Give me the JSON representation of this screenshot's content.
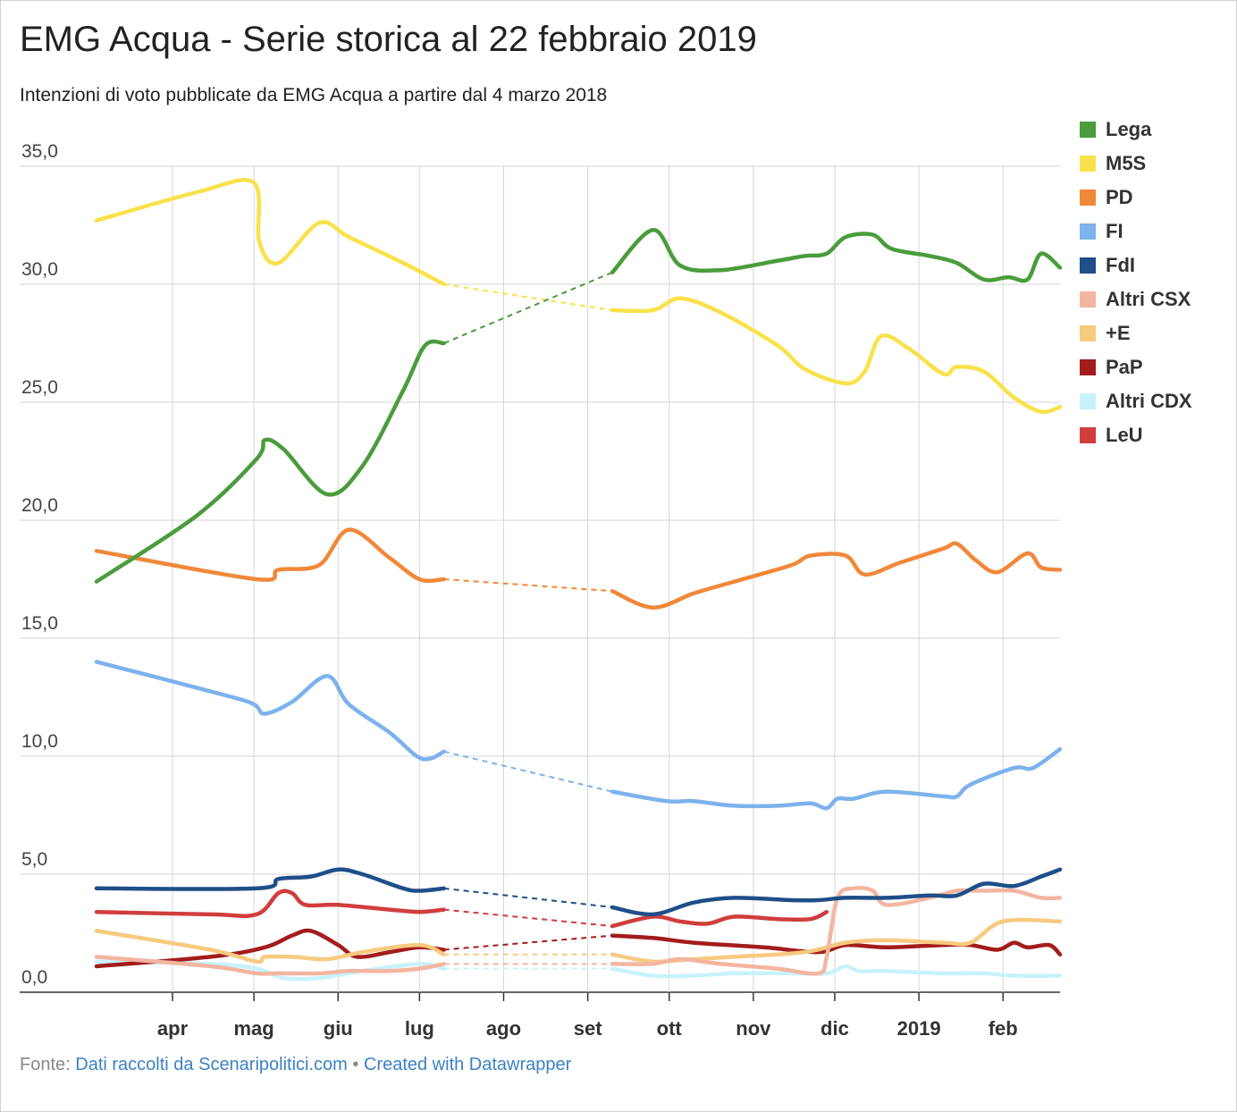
{
  "title": "EMG Acqua - Serie storica al 22 febbraio 2019",
  "subtitle": "Intenzioni di voto pubblicate da EMG Acqua a partire dal 4 marzo 2018",
  "footer": {
    "prefix": "Fonte:",
    "source": "Dati raccolti da Scenaripolitici.com",
    "separator": "•",
    "credit": "Created with Datawrapper"
  },
  "chart_data": {
    "type": "line",
    "ylim": [
      0,
      35
    ],
    "y_ticks": [
      "0,0",
      "5,0",
      "10,0",
      "15,0",
      "20,0",
      "25,0",
      "30,0",
      "35,0"
    ],
    "x_ticks": [
      "apr",
      "mag",
      "giu",
      "lug",
      "ago",
      "set",
      "ott",
      "nov",
      "dic",
      "2019",
      "feb"
    ],
    "x_tick_dates": [
      "2018-04-01",
      "2018-05-01",
      "2018-06-01",
      "2018-07-01",
      "2018-08-01",
      "2018-09-01",
      "2018-10-01",
      "2018-11-01",
      "2018-12-01",
      "2019-01-01",
      "2019-02-01"
    ],
    "x_range": [
      "2018-03-04",
      "2019-02-22"
    ],
    "gap": {
      "from": "2018-07-10",
      "to": "2018-09-10",
      "style": "dashed"
    },
    "grid": true,
    "legend_position": "right",
    "series": [
      {
        "name": "Lega",
        "color": "#4a9c3c",
        "points": [
          [
            "2018-03-04",
            17.4
          ],
          [
            "2018-04-10",
            20.2
          ],
          [
            "2018-05-02",
            22.6
          ],
          [
            "2018-05-05",
            23.4
          ],
          [
            "2018-05-12",
            23.0
          ],
          [
            "2018-05-28",
            21.1
          ],
          [
            "2018-06-10",
            22.3
          ],
          [
            "2018-06-25",
            25.5
          ],
          [
            "2018-07-03",
            27.4
          ],
          [
            "2018-07-10",
            27.5
          ],
          [
            "2018-09-10",
            30.5
          ],
          [
            "2018-09-25",
            32.3
          ],
          [
            "2018-10-05",
            30.8
          ],
          [
            "2018-10-20",
            30.6
          ],
          [
            "2018-11-10",
            31.0
          ],
          [
            "2018-11-20",
            31.2
          ],
          [
            "2018-11-28",
            31.3
          ],
          [
            "2018-12-05",
            32.0
          ],
          [
            "2018-12-15",
            32.1
          ],
          [
            "2018-12-22",
            31.5
          ],
          [
            "2019-01-05",
            31.2
          ],
          [
            "2019-01-15",
            30.9
          ],
          [
            "2019-01-25",
            30.2
          ],
          [
            "2019-02-03",
            30.3
          ],
          [
            "2019-02-10",
            30.2
          ],
          [
            "2019-02-15",
            31.3
          ],
          [
            "2019-02-22",
            30.7
          ]
        ]
      },
      {
        "name": "M5S",
        "color": "#f9e14b",
        "points": [
          [
            "2018-03-04",
            32.7
          ],
          [
            "2018-04-10",
            33.9
          ],
          [
            "2018-05-01",
            34.3
          ],
          [
            "2018-05-03",
            31.8
          ],
          [
            "2018-05-10",
            30.9
          ],
          [
            "2018-05-25",
            32.6
          ],
          [
            "2018-06-05",
            32.0
          ],
          [
            "2018-06-25",
            30.9
          ],
          [
            "2018-07-10",
            30.0
          ],
          [
            "2018-09-10",
            28.9
          ],
          [
            "2018-09-25",
            28.9
          ],
          [
            "2018-10-05",
            29.4
          ],
          [
            "2018-10-20",
            28.8
          ],
          [
            "2018-11-10",
            27.4
          ],
          [
            "2018-11-20",
            26.4
          ],
          [
            "2018-12-05",
            25.8
          ],
          [
            "2018-12-12",
            26.3
          ],
          [
            "2018-12-18",
            27.8
          ],
          [
            "2018-12-28",
            27.3
          ],
          [
            "2019-01-10",
            26.2
          ],
          [
            "2019-01-15",
            26.5
          ],
          [
            "2019-01-25",
            26.3
          ],
          [
            "2019-02-05",
            25.2
          ],
          [
            "2019-02-15",
            24.6
          ],
          [
            "2019-02-22",
            24.8
          ]
        ]
      },
      {
        "name": "PD",
        "color": "#f0883a",
        "points": [
          [
            "2018-03-04",
            18.7
          ],
          [
            "2018-05-02",
            17.5
          ],
          [
            "2018-05-10",
            17.9
          ],
          [
            "2018-05-25",
            18.1
          ],
          [
            "2018-06-05",
            19.6
          ],
          [
            "2018-06-20",
            18.4
          ],
          [
            "2018-07-01",
            17.5
          ],
          [
            "2018-07-10",
            17.5
          ],
          [
            "2018-09-10",
            17.0
          ],
          [
            "2018-09-25",
            16.3
          ],
          [
            "2018-10-10",
            16.9
          ],
          [
            "2018-10-25",
            17.4
          ],
          [
            "2018-11-15",
            18.1
          ],
          [
            "2018-11-22",
            18.5
          ],
          [
            "2018-12-05",
            18.5
          ],
          [
            "2018-12-12",
            17.7
          ],
          [
            "2018-12-25",
            18.2
          ],
          [
            "2019-01-10",
            18.8
          ],
          [
            "2019-01-15",
            19.0
          ],
          [
            "2019-01-22",
            18.3
          ],
          [
            "2019-01-30",
            17.8
          ],
          [
            "2019-02-10",
            18.6
          ],
          [
            "2019-02-15",
            18.0
          ],
          [
            "2019-02-22",
            17.9
          ]
        ]
      },
      {
        "name": "FI",
        "color": "#7db2ec",
        "points": [
          [
            "2018-03-04",
            14.0
          ],
          [
            "2018-04-20",
            12.6
          ],
          [
            "2018-05-01",
            12.2
          ],
          [
            "2018-05-05",
            11.8
          ],
          [
            "2018-05-15",
            12.3
          ],
          [
            "2018-05-28",
            13.4
          ],
          [
            "2018-06-05",
            12.2
          ],
          [
            "2018-06-20",
            11.0
          ],
          [
            "2018-06-30",
            10.0
          ],
          [
            "2018-07-05",
            9.9
          ],
          [
            "2018-07-10",
            10.2
          ],
          [
            "2018-09-10",
            8.5
          ],
          [
            "2018-09-30",
            8.1
          ],
          [
            "2018-10-10",
            8.1
          ],
          [
            "2018-10-25",
            7.9
          ],
          [
            "2018-11-10",
            7.9
          ],
          [
            "2018-11-22",
            8.0
          ],
          [
            "2018-11-28",
            7.8
          ],
          [
            "2018-12-02",
            8.2
          ],
          [
            "2018-12-08",
            8.2
          ],
          [
            "2018-12-20",
            8.5
          ],
          [
            "2019-01-10",
            8.3
          ],
          [
            "2019-01-15",
            8.3
          ],
          [
            "2019-01-20",
            8.8
          ],
          [
            "2019-02-05",
            9.5
          ],
          [
            "2019-02-12",
            9.5
          ],
          [
            "2019-02-22",
            10.3
          ]
        ]
      },
      {
        "name": "FdI",
        "color": "#1f4e89",
        "points": [
          [
            "2018-03-04",
            4.4
          ],
          [
            "2018-05-02",
            4.4
          ],
          [
            "2018-05-10",
            4.8
          ],
          [
            "2018-05-22",
            4.9
          ],
          [
            "2018-06-01",
            5.2
          ],
          [
            "2018-06-10",
            5.0
          ],
          [
            "2018-06-25",
            4.4
          ],
          [
            "2018-07-01",
            4.3
          ],
          [
            "2018-07-10",
            4.4
          ],
          [
            "2018-09-10",
            3.6
          ],
          [
            "2018-09-25",
            3.3
          ],
          [
            "2018-10-10",
            3.8
          ],
          [
            "2018-10-25",
            4.0
          ],
          [
            "2018-11-15",
            3.9
          ],
          [
            "2018-11-25",
            3.9
          ],
          [
            "2018-12-05",
            4.0
          ],
          [
            "2018-12-20",
            4.0
          ],
          [
            "2019-01-05",
            4.1
          ],
          [
            "2019-01-15",
            4.1
          ],
          [
            "2019-01-25",
            4.6
          ],
          [
            "2019-02-05",
            4.5
          ],
          [
            "2019-02-15",
            4.9
          ],
          [
            "2019-02-22",
            5.2
          ]
        ]
      },
      {
        "name": "Altri CSX",
        "color": "#f4b5a0",
        "points": [
          [
            "2018-03-04",
            1.5
          ],
          [
            "2018-04-15",
            1.1
          ],
          [
            "2018-05-02",
            0.8
          ],
          [
            "2018-05-10",
            0.8
          ],
          [
            "2018-05-25",
            0.8
          ],
          [
            "2018-06-05",
            0.9
          ],
          [
            "2018-06-20",
            0.9
          ],
          [
            "2018-07-01",
            1.0
          ],
          [
            "2018-07-10",
            1.2
          ],
          [
            "2018-09-10",
            1.2
          ],
          [
            "2018-09-25",
            1.2
          ],
          [
            "2018-10-05",
            1.4
          ],
          [
            "2018-10-20",
            1.2
          ],
          [
            "2018-11-10",
            1.0
          ],
          [
            "2018-11-25",
            0.8
          ],
          [
            "2018-11-28",
            1.5
          ],
          [
            "2018-12-02",
            4.0
          ],
          [
            "2018-12-08",
            4.4
          ],
          [
            "2018-12-15",
            4.3
          ],
          [
            "2018-12-20",
            3.7
          ],
          [
            "2019-01-05",
            4.0
          ],
          [
            "2019-01-15",
            4.3
          ],
          [
            "2019-01-25",
            4.3
          ],
          [
            "2019-02-05",
            4.3
          ],
          [
            "2019-02-15",
            4.0
          ],
          [
            "2019-02-22",
            4.0
          ]
        ]
      },
      {
        "name": "+E",
        "color": "#f7ca80",
        "points": [
          [
            "2018-03-04",
            2.6
          ],
          [
            "2018-04-15",
            1.8
          ],
          [
            "2018-05-02",
            1.3
          ],
          [
            "2018-05-05",
            1.5
          ],
          [
            "2018-05-15",
            1.5
          ],
          [
            "2018-05-28",
            1.4
          ],
          [
            "2018-06-10",
            1.7
          ],
          [
            "2018-07-01",
            2.0
          ],
          [
            "2018-07-10",
            1.6
          ],
          [
            "2018-09-10",
            1.6
          ],
          [
            "2018-09-25",
            1.3
          ],
          [
            "2018-10-10",
            1.4
          ],
          [
            "2018-10-25",
            1.5
          ],
          [
            "2018-11-20",
            1.7
          ],
          [
            "2018-12-05",
            2.1
          ],
          [
            "2018-12-20",
            2.2
          ],
          [
            "2019-01-10",
            2.1
          ],
          [
            "2019-01-20",
            2.1
          ],
          [
            "2019-02-01",
            3.0
          ],
          [
            "2019-02-22",
            3.0
          ]
        ]
      },
      {
        "name": "PaP",
        "color": "#a31c1c",
        "points": [
          [
            "2018-03-04",
            1.1
          ],
          [
            "2018-04-15",
            1.5
          ],
          [
            "2018-05-05",
            1.9
          ],
          [
            "2018-05-15",
            2.4
          ],
          [
            "2018-05-22",
            2.6
          ],
          [
            "2018-06-01",
            2.0
          ],
          [
            "2018-06-08",
            1.5
          ],
          [
            "2018-06-20",
            1.7
          ],
          [
            "2018-07-01",
            1.9
          ],
          [
            "2018-07-10",
            1.8
          ],
          [
            "2018-09-10",
            2.4
          ],
          [
            "2018-09-25",
            2.3
          ],
          [
            "2018-10-10",
            2.1
          ],
          [
            "2018-11-05",
            1.9
          ],
          [
            "2018-11-25",
            1.7
          ],
          [
            "2018-12-05",
            2.0
          ],
          [
            "2018-12-20",
            1.9
          ],
          [
            "2019-01-10",
            2.0
          ],
          [
            "2019-01-20",
            2.0
          ],
          [
            "2019-01-30",
            1.8
          ],
          [
            "2019-02-05",
            2.1
          ],
          [
            "2019-02-10",
            1.9
          ],
          [
            "2019-02-18",
            2.0
          ],
          [
            "2019-02-22",
            1.6
          ]
        ]
      },
      {
        "name": "Altri CDX",
        "color": "#c8f2fb",
        "points": [
          [
            "2018-03-04",
            1.3
          ],
          [
            "2018-04-15",
            1.2
          ],
          [
            "2018-05-02",
            1.0
          ],
          [
            "2018-05-12",
            0.6
          ],
          [
            "2018-05-25",
            0.6
          ],
          [
            "2018-06-10",
            0.9
          ],
          [
            "2018-07-01",
            1.2
          ],
          [
            "2018-07-10",
            1.0
          ],
          [
            "2018-09-10",
            1.0
          ],
          [
            "2018-09-25",
            0.7
          ],
          [
            "2018-10-10",
            0.7
          ],
          [
            "2018-10-25",
            0.8
          ],
          [
            "2018-11-15",
            0.8
          ],
          [
            "2018-11-28",
            0.8
          ],
          [
            "2018-12-05",
            1.1
          ],
          [
            "2018-12-10",
            0.9
          ],
          [
            "2018-12-20",
            0.9
          ],
          [
            "2019-01-10",
            0.8
          ],
          [
            "2019-01-25",
            0.8
          ],
          [
            "2019-02-05",
            0.7
          ],
          [
            "2019-02-22",
            0.7
          ]
        ]
      },
      {
        "name": "LeU",
        "color": "#d03d3d",
        "points": [
          [
            "2018-03-04",
            3.4
          ],
          [
            "2018-04-15",
            3.3
          ],
          [
            "2018-05-02",
            3.3
          ],
          [
            "2018-05-10",
            4.2
          ],
          [
            "2018-05-15",
            4.2
          ],
          [
            "2018-05-20",
            3.7
          ],
          [
            "2018-06-01",
            3.7
          ],
          [
            "2018-06-20",
            3.5
          ],
          [
            "2018-07-01",
            3.4
          ],
          [
            "2018-07-10",
            3.5
          ],
          [
            "2018-09-10",
            2.8
          ],
          [
            "2018-09-25",
            3.2
          ],
          [
            "2018-10-05",
            3.0
          ],
          [
            "2018-10-15",
            2.9
          ],
          [
            "2018-10-25",
            3.2
          ],
          [
            "2018-11-10",
            3.1
          ],
          [
            "2018-11-22",
            3.1
          ],
          [
            "2018-11-28",
            3.4
          ]
        ]
      }
    ]
  }
}
